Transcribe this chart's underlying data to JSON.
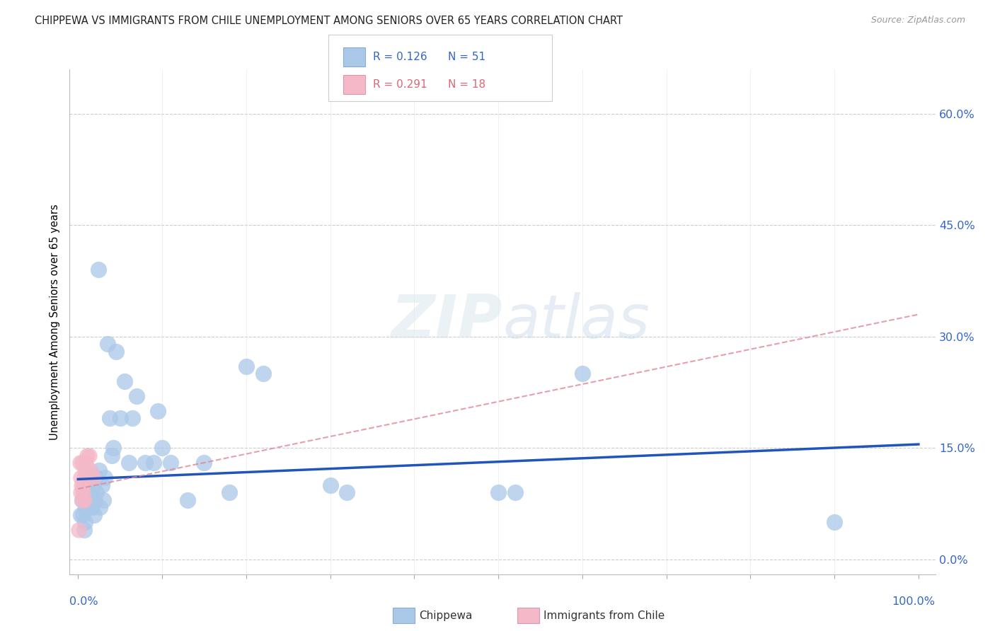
{
  "title": "CHIPPEWA VS IMMIGRANTS FROM CHILE UNEMPLOYMENT AMONG SENIORS OVER 65 YEARS CORRELATION CHART",
  "source": "Source: ZipAtlas.com",
  "ylabel": "Unemployment Among Seniors over 65 years",
  "ytick_labels": [
    "0.0%",
    "15.0%",
    "30.0%",
    "45.0%",
    "60.0%"
  ],
  "ytick_values": [
    0.0,
    0.15,
    0.3,
    0.45,
    0.6
  ],
  "xlim": [
    -0.01,
    1.02
  ],
  "ylim": [
    -0.02,
    0.66
  ],
  "chippewa_color": "#aac8e8",
  "chile_color": "#f4b8c8",
  "line_blue_color": "#2255bb",
  "line_pink_color": "#e08898",
  "watermark": "ZIPatlas",
  "blue_line_start": 0.108,
  "blue_line_end": 0.155,
  "pink_line_start": 0.095,
  "pink_line_end": 0.33,
  "chippewa_x": [
    0.003,
    0.005,
    0.006,
    0.007,
    0.008,
    0.009,
    0.01,
    0.011,
    0.012,
    0.013,
    0.014,
    0.015,
    0.016,
    0.017,
    0.018,
    0.019,
    0.02,
    0.021,
    0.022,
    0.024,
    0.025,
    0.026,
    0.028,
    0.03,
    0.032,
    0.035,
    0.038,
    0.04,
    0.042,
    0.045,
    0.05,
    0.055,
    0.06,
    0.065,
    0.07,
    0.08,
    0.09,
    0.095,
    0.1,
    0.11,
    0.13,
    0.15,
    0.18,
    0.2,
    0.22,
    0.3,
    0.32,
    0.5,
    0.52,
    0.6,
    0.9
  ],
  "chippewa_y": [
    0.06,
    0.08,
    0.06,
    0.04,
    0.05,
    0.07,
    0.08,
    0.09,
    0.07,
    0.1,
    0.08,
    0.09,
    0.11,
    0.07,
    0.1,
    0.06,
    0.08,
    0.11,
    0.09,
    0.39,
    0.12,
    0.07,
    0.1,
    0.08,
    0.11,
    0.29,
    0.19,
    0.14,
    0.15,
    0.28,
    0.19,
    0.24,
    0.13,
    0.19,
    0.22,
    0.13,
    0.13,
    0.2,
    0.15,
    0.13,
    0.08,
    0.13,
    0.09,
    0.26,
    0.25,
    0.1,
    0.09,
    0.09,
    0.09,
    0.25,
    0.05
  ],
  "chile_x": [
    0.001,
    0.002,
    0.003,
    0.003,
    0.004,
    0.005,
    0.005,
    0.006,
    0.006,
    0.007,
    0.007,
    0.008,
    0.009,
    0.01,
    0.011,
    0.013,
    0.015,
    0.018
  ],
  "chile_y": [
    0.04,
    0.13,
    0.11,
    0.09,
    0.1,
    0.13,
    0.08,
    0.1,
    0.09,
    0.08,
    0.11,
    0.12,
    0.13,
    0.11,
    0.14,
    0.14,
    0.12,
    0.11
  ]
}
